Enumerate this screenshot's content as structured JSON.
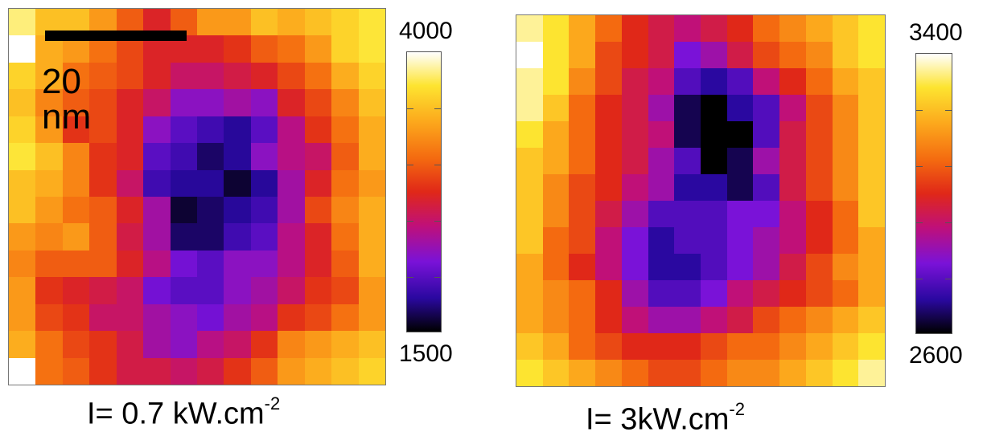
{
  "left_panel": {
    "scale_bar_label": "20 nm",
    "caption_main": "I= 0.7 kW.cm",
    "caption_exp": "-2",
    "colorbar_max": "4000",
    "colorbar_min": "1500"
  },
  "right_panel": {
    "caption_main": "I= 3kW.cm",
    "caption_exp": "-2",
    "colorbar_max": "3400",
    "colorbar_min": "2600"
  },
  "colors": {
    "colormap": [
      "#000000",
      "#2a08a0",
      "#7a12d8",
      "#c01078",
      "#e02818",
      "#f46a10",
      "#fca81c",
      "#fde430",
      "#ffffff"
    ]
  },
  "chart_data": [
    {
      "type": "heatmap",
      "title": "",
      "caption": "I= 0.7 kW.cm-2",
      "colorbar": {
        "min": 1500,
        "max": 4000
      },
      "rows": 14,
      "cols": 14,
      "values": [
        [
          3800,
          3500,
          3500,
          3300,
          3000,
          2700,
          3000,
          3300,
          3300,
          3500,
          3400,
          3500,
          3600,
          3700
        ],
        [
          4000,
          3400,
          3300,
          3100,
          2900,
          2700,
          2700,
          2700,
          2800,
          3000,
          3100,
          3300,
          3600,
          3700
        ],
        [
          3600,
          3400,
          3100,
          3000,
          2900,
          2700,
          2500,
          2500,
          2600,
          2700,
          2900,
          3100,
          3400,
          3600
        ],
        [
          3500,
          3200,
          3000,
          2900,
          2700,
          2500,
          2200,
          2200,
          2300,
          2200,
          2700,
          2900,
          3200,
          3500
        ],
        [
          3600,
          3300,
          2800,
          2900,
          2700,
          2200,
          2000,
          1900,
          1800,
          2000,
          2400,
          2800,
          3100,
          3400
        ],
        [
          3700,
          3500,
          3200,
          2800,
          2700,
          2000,
          1900,
          1700,
          1800,
          2200,
          2400,
          2500,
          3000,
          3400
        ],
        [
          3500,
          3400,
          3200,
          2800,
          2500,
          1900,
          1800,
          1800,
          1600,
          1800,
          2300,
          2700,
          3100,
          3300
        ],
        [
          3500,
          3300,
          3100,
          3000,
          2700,
          2300,
          1600,
          1700,
          1800,
          1900,
          2300,
          2900,
          3200,
          3400
        ],
        [
          3300,
          3200,
          3300,
          3000,
          2600,
          2300,
          1700,
          1700,
          1900,
          2000,
          2400,
          2700,
          3100,
          3400
        ],
        [
          3200,
          3000,
          3000,
          3000,
          2700,
          2400,
          2100,
          2000,
          2200,
          2200,
          2400,
          2700,
          3000,
          3400
        ],
        [
          3300,
          2800,
          2700,
          2600,
          2500,
          2100,
          2000,
          2000,
          2200,
          2300,
          2500,
          2800,
          2900,
          3300
        ],
        [
          3300,
          2900,
          2800,
          2500,
          2500,
          2300,
          2200,
          2100,
          2300,
          2400,
          2800,
          2900,
          3100,
          3300
        ],
        [
          3400,
          3100,
          2900,
          2800,
          2600,
          2300,
          2200,
          2400,
          2500,
          2800,
          3200,
          3300,
          3400,
          3500
        ],
        [
          4000,
          3100,
          3000,
          2800,
          2600,
          2600,
          2500,
          2600,
          2800,
          3000,
          3300,
          3400,
          3500,
          3600
        ]
      ]
    },
    {
      "type": "heatmap",
      "title": "",
      "caption": "I= 3kW.cm-2",
      "colorbar": {
        "min": 2600,
        "max": 3400
      },
      "rows": 14,
      "cols": 14,
      "values": [
        [
          3350,
          3300,
          3200,
          3100,
          3000,
          2950,
          2900,
          2950,
          3000,
          3100,
          3150,
          3200,
          3250,
          3300
        ],
        [
          3400,
          3300,
          3200,
          3050,
          3000,
          2950,
          2800,
          2850,
          2950,
          3050,
          3100,
          3150,
          3250,
          3300
        ],
        [
          3350,
          3300,
          3150,
          3050,
          2950,
          2900,
          2750,
          2700,
          2750,
          2900,
          3000,
          3100,
          3200,
          3250
        ],
        [
          3350,
          3250,
          3100,
          3000,
          2950,
          2850,
          2650,
          2600,
          2700,
          2750,
          2900,
          3050,
          3150,
          3250
        ],
        [
          3300,
          3200,
          3100,
          3000,
          2950,
          2900,
          2650,
          2600,
          2600,
          2750,
          2950,
          3050,
          3150,
          3250
        ],
        [
          3250,
          3200,
          3100,
          3000,
          2950,
          2850,
          2750,
          2600,
          2650,
          2850,
          2950,
          3050,
          3150,
          3250
        ],
        [
          3250,
          3150,
          3050,
          3000,
          2900,
          2850,
          2700,
          2700,
          2650,
          2750,
          2950,
          3050,
          3150,
          3250
        ],
        [
          3250,
          3150,
          3050,
          2950,
          2850,
          2750,
          2750,
          2750,
          2800,
          2800,
          2900,
          3000,
          3100,
          3250
        ],
        [
          3250,
          3100,
          3050,
          2900,
          2800,
          2700,
          2750,
          2750,
          2800,
          2850,
          2900,
          3000,
          3100,
          3200
        ],
        [
          3200,
          3100,
          3000,
          2900,
          2800,
          2700,
          2700,
          2750,
          2800,
          2850,
          2950,
          3050,
          3150,
          3200
        ],
        [
          3200,
          3150,
          3100,
          3000,
          2850,
          2750,
          2750,
          2800,
          2900,
          2950,
          3000,
          3050,
          3100,
          3200
        ],
        [
          3200,
          3150,
          3100,
          3000,
          2900,
          2850,
          2850,
          2900,
          2950,
          3050,
          3100,
          3150,
          3200,
          3250
        ],
        [
          3250,
          3200,
          3100,
          3050,
          3000,
          3000,
          3000,
          3050,
          3100,
          3100,
          3150,
          3200,
          3250,
          3300
        ],
        [
          3300,
          3250,
          3200,
          3150,
          3100,
          3050,
          3050,
          3100,
          3150,
          3150,
          3200,
          3250,
          3300,
          3350
        ]
      ]
    }
  ]
}
